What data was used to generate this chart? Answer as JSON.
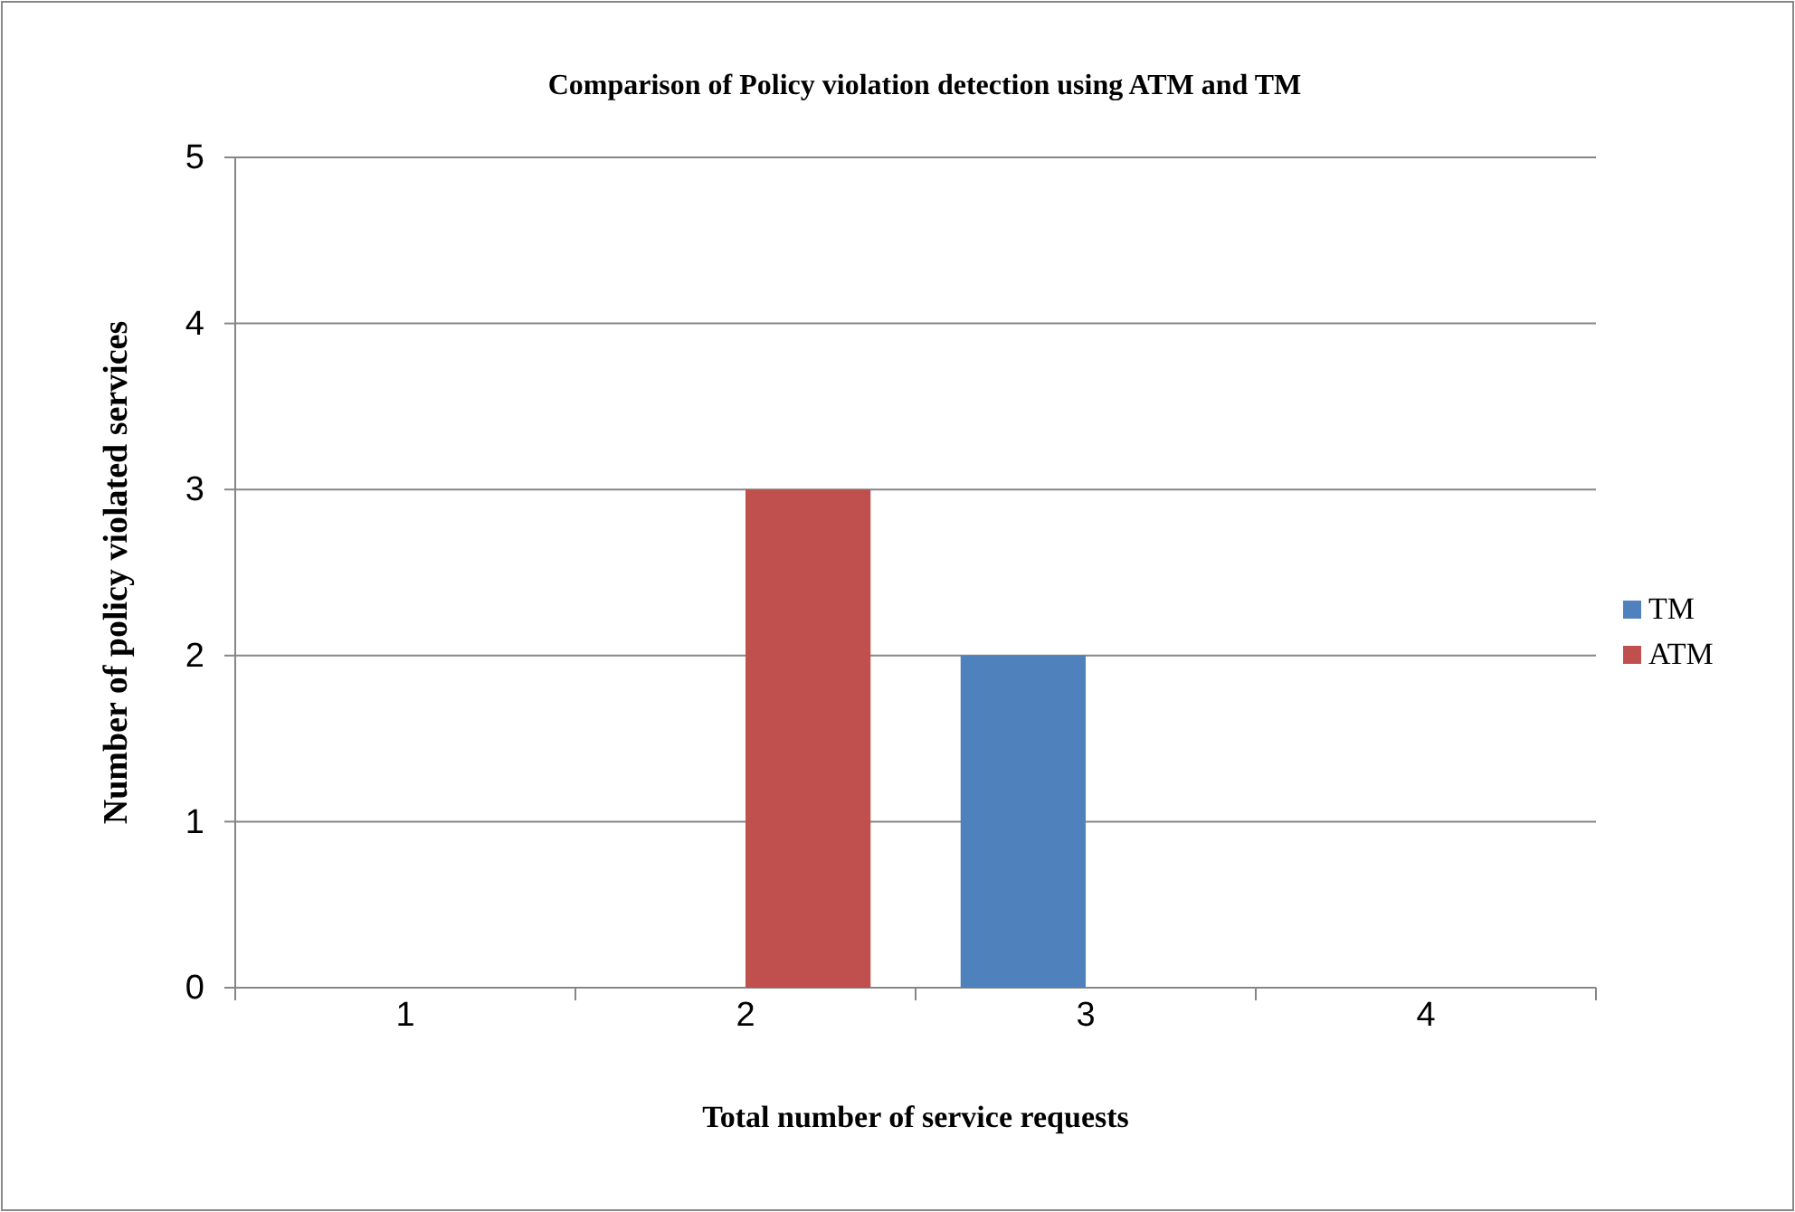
{
  "chart_data": {
    "type": "bar",
    "title": "Comparison of Policy violation detection using ATM and TM",
    "xlabel": "Total number of service requests",
    "ylabel": "Number of policy violated services",
    "categories": [
      "1",
      "2",
      "3",
      "4"
    ],
    "series": [
      {
        "name": "TM",
        "color": "#4f81bd",
        "values": [
          0,
          0,
          2,
          0
        ]
      },
      {
        "name": "ATM",
        "color": "#c0504d",
        "values": [
          0,
          3,
          0,
          0
        ]
      }
    ],
    "ylim": [
      0,
      5
    ],
    "yticks": [
      0,
      1,
      2,
      3,
      4,
      5
    ],
    "grid": "y",
    "legend": "right"
  }
}
